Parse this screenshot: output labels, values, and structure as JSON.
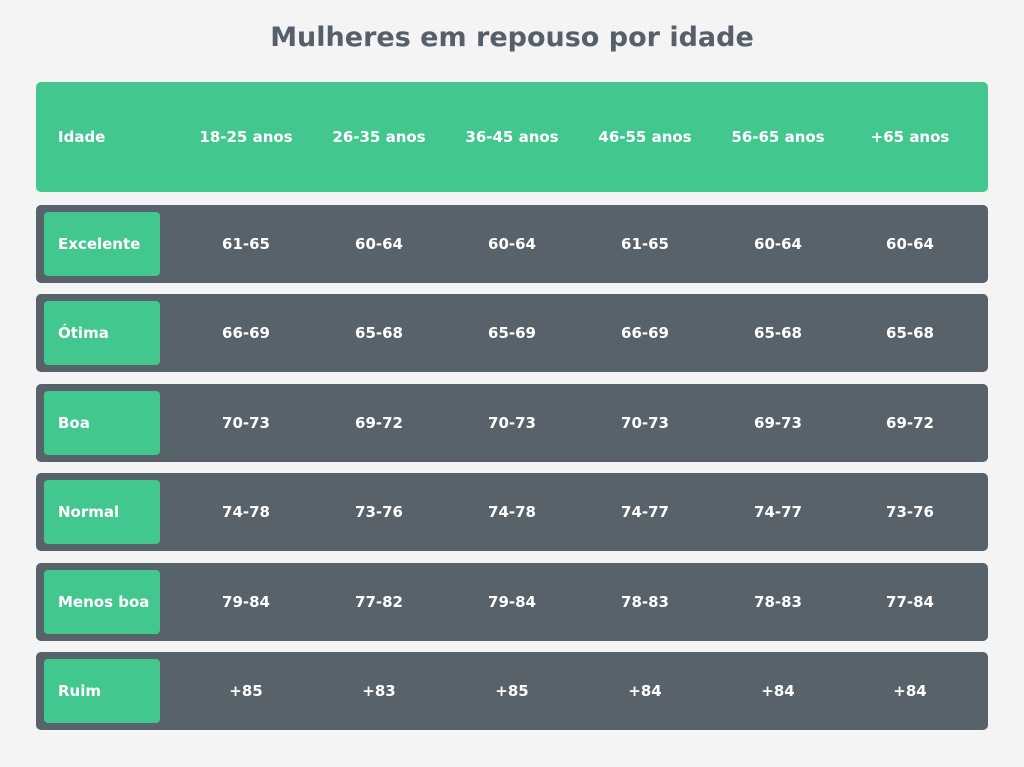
{
  "header": {
    "title": "Mulheres em repouso por idade"
  },
  "table": {
    "columns": [
      "Idade",
      "18-25 anos",
      "26-35 anos",
      "36-45 anos",
      "46-55 anos",
      "56-65 anos",
      "+65 anos"
    ],
    "rows": [
      [
        "Excelente",
        "61-65",
        "60-64",
        "60-64",
        "61-65",
        "60-64",
        "60-64"
      ],
      [
        "Ótima",
        "66-69",
        "65-68",
        "65-69",
        "66-69",
        "65-68",
        "65-68"
      ],
      [
        "Boa",
        "70-73",
        "69-72",
        "70-73",
        "70-73",
        "69-73",
        "69-72"
      ],
      [
        "Normal",
        "74-78",
        "73-76",
        "74-78",
        "74-77",
        "74-77",
        "73-76"
      ],
      [
        "Menos boa",
        "79-84",
        "77-82",
        "79-84",
        "78-83",
        "78-83",
        "77-84"
      ],
      [
        "Ruim",
        "+85",
        "+83",
        "+85",
        "+84",
        "+84",
        "+84"
      ]
    ]
  }
}
